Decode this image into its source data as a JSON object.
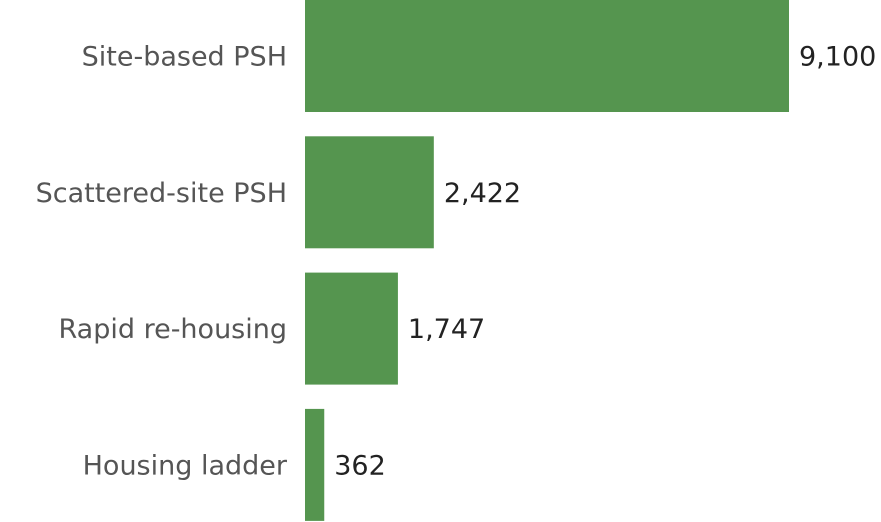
{
  "chart_data": {
    "type": "bar",
    "orientation": "horizontal",
    "categories": [
      "Site-based PSH",
      "Scattered-site PSH",
      "Rapid re-housing",
      "Housing ladder"
    ],
    "values": [
      9100,
      2422,
      1747,
      362
    ],
    "value_labels": [
      "9,100",
      "2,422",
      "1,747",
      "362"
    ],
    "color": "#55954f"
  }
}
